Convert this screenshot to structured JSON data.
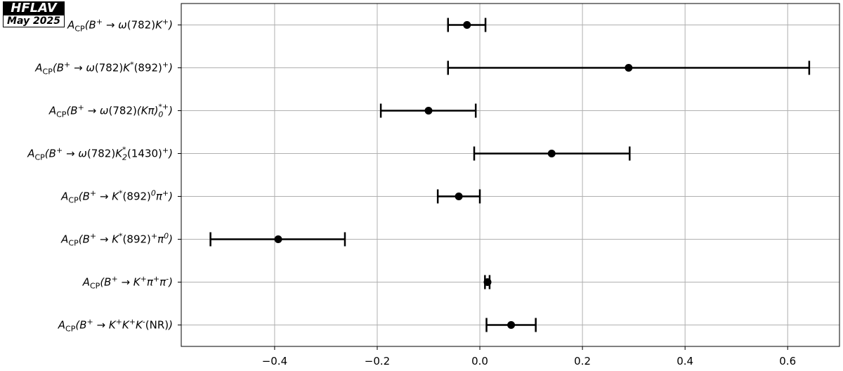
{
  "badge": {
    "title": "HFLAV",
    "date": "May 2025"
  },
  "chart_data": {
    "type": "scatter",
    "orientation": "horizontal-errorbar",
    "categories": [
      "A_{CP}(B^{+} → ω(782)K^{+})",
      "A_{CP}(B^{+} → ω(782)K^{*}(892)^{+})",
      "A_{CP}(B^{+} → ω(782)(Kπ)_{0}^{*+})",
      "A_{CP}(B^{+} → ω(782)K_{2}^{*}(1430)^{+})",
      "A_{CP}(B^{+} → K^{*}(892)^{0}π^{+})",
      "A_{CP}(B^{+} → K^{*}(892)^{+}π^{0})",
      "A_{CP}(B^{+} → K^{+}π^{+}π^{-})",
      "A_{CP}(B^{+} → K^{+}K^{+}K^{-}(NR))"
    ],
    "values": [
      -0.025,
      0.29,
      -0.1,
      0.14,
      -0.041,
      -0.393,
      0.015,
      0.061
    ],
    "err_low": [
      -0.062,
      -0.062,
      -0.193,
      -0.011,
      -0.082,
      -0.525,
      0.01,
      0.013
    ],
    "err_high": [
      0.011,
      0.642,
      -0.008,
      0.292,
      0.0,
      -0.263,
      0.019,
      0.109
    ],
    "xlim": [
      -0.582,
      0.701
    ],
    "xticks": [
      -0.4,
      -0.2,
      0.0,
      0.2,
      0.4,
      0.6
    ],
    "xtick_labels": [
      "−0.4",
      "−0.2",
      "0.0",
      "0.2",
      "0.4",
      "0.6"
    ],
    "grid": true,
    "marker_color": "#000000",
    "grid_color": "#b0b0b0"
  }
}
